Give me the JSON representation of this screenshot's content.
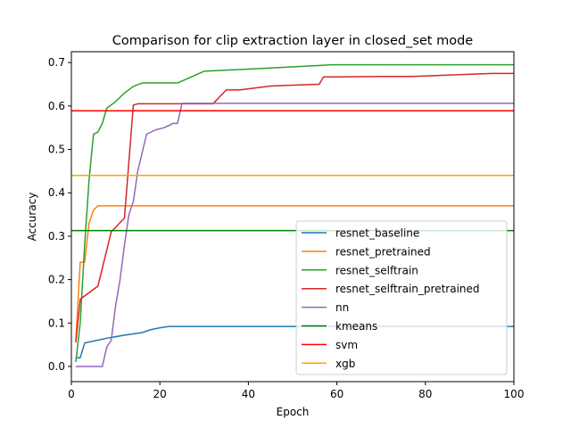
{
  "chart_data": {
    "type": "line",
    "title": "Comparison for clip extraction layer in closed_set mode",
    "xlabel": "Epoch",
    "ylabel": "Accuracy",
    "xlim": [
      0,
      100
    ],
    "ylim": [
      -0.035,
      0.725
    ],
    "xticks": [
      0,
      20,
      40,
      60,
      80,
      100
    ],
    "yticks": [
      0.0,
      0.1,
      0.2,
      0.3,
      0.4,
      0.5,
      0.6,
      0.7
    ],
    "grid": false,
    "legend_position": "lower right",
    "series": [
      {
        "name": "resnet_baseline",
        "color": "#1f77b4",
        "kind": "line",
        "x": [
          1,
          2,
          3,
          8,
          12,
          16,
          18,
          20,
          22,
          25,
          30,
          40,
          60,
          80,
          100
        ],
        "y": [
          0.02,
          0.02,
          0.054,
          0.065,
          0.072,
          0.078,
          0.085,
          0.089,
          0.092,
          0.092,
          0.092,
          0.092,
          0.092,
          0.092,
          0.092
        ]
      },
      {
        "name": "resnet_pretrained",
        "color": "#ff7f0e",
        "kind": "line",
        "x": [
          1,
          2,
          3,
          4,
          5,
          6,
          7,
          10,
          20,
          40,
          60,
          80,
          100
        ],
        "y": [
          0.06,
          0.24,
          0.24,
          0.33,
          0.36,
          0.37,
          0.37,
          0.37,
          0.37,
          0.37,
          0.37,
          0.37,
          0.37
        ]
      },
      {
        "name": "resnet_selftrain",
        "color": "#2ca02c",
        "kind": "line",
        "x": [
          1,
          2,
          3,
          4,
          5,
          6,
          7,
          8,
          10,
          12,
          14,
          16,
          20,
          24,
          30,
          40,
          50,
          59,
          70,
          80,
          90,
          100
        ],
        "y": [
          0.01,
          0.1,
          0.28,
          0.43,
          0.535,
          0.54,
          0.56,
          0.595,
          0.61,
          0.63,
          0.645,
          0.653,
          0.653,
          0.653,
          0.68,
          0.685,
          0.69,
          0.695,
          0.695,
          0.695,
          0.695,
          0.695
        ]
      },
      {
        "name": "resnet_selftrain_pretrained",
        "color": "#d62728",
        "kind": "line",
        "x": [
          1,
          2,
          6,
          9,
          12,
          14,
          15,
          17,
          20,
          25,
          32,
          35,
          38,
          45,
          50,
          56,
          57,
          60,
          70,
          77,
          85,
          95,
          100
        ],
        "y": [
          0.055,
          0.155,
          0.185,
          0.31,
          0.342,
          0.602,
          0.605,
          0.605,
          0.605,
          0.605,
          0.605,
          0.637,
          0.637,
          0.646,
          0.648,
          0.65,
          0.667,
          0.667,
          0.668,
          0.668,
          0.671,
          0.675,
          0.675
        ]
      },
      {
        "name": "nn",
        "color": "#9467bd",
        "kind": "line",
        "x": [
          1,
          3,
          5,
          7,
          8,
          9,
          10,
          11,
          12,
          13,
          14,
          15,
          17,
          19,
          21,
          23,
          24,
          25,
          30,
          40,
          60,
          80,
          100
        ],
        "y": [
          0.0,
          0.0,
          0.0,
          0.0,
          0.045,
          0.06,
          0.14,
          0.2,
          0.28,
          0.35,
          0.38,
          0.45,
          0.535,
          0.545,
          0.55,
          0.56,
          0.56,
          0.606,
          0.606,
          0.606,
          0.606,
          0.606,
          0.606
        ]
      },
      {
        "name": "kmeans",
        "color": "#008000",
        "kind": "hline",
        "y": 0.313
      },
      {
        "name": "svm",
        "color": "#ff0000",
        "kind": "hline",
        "y": 0.589
      },
      {
        "name": "xgb",
        "color": "#ffa500",
        "kind": "hline",
        "y": 0.44
      }
    ]
  }
}
